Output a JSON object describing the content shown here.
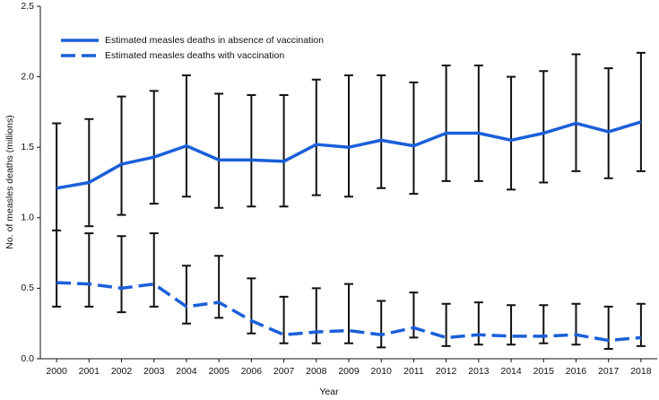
{
  "chart_data": {
    "type": "line",
    "x_label": "Year",
    "y_label": "No. of measles deaths (millions)",
    "x": [
      2000,
      2001,
      2002,
      2003,
      2004,
      2005,
      2006,
      2007,
      2008,
      2009,
      2010,
      2011,
      2012,
      2013,
      2014,
      2015,
      2016,
      2017,
      2018
    ],
    "xlim": [
      1999.5,
      2018.5
    ],
    "xticks": [
      2000,
      2001,
      2002,
      2003,
      2004,
      2005,
      2006,
      2007,
      2008,
      2009,
      2010,
      2011,
      2012,
      2013,
      2014,
      2015,
      2016,
      2017,
      2018
    ],
    "ylim": [
      0,
      2.5
    ],
    "yticks": [
      {
        "value": 0,
        "label": "0.0"
      },
      0.5,
      {
        "value": 1,
        "label": "1.0"
      },
      1.5,
      {
        "value": 2,
        "label": "2.0"
      },
      2.5
    ],
    "grid": false,
    "legend": "upper left",
    "series": [
      {
        "name": "Estimated measles deaths in absence of vaccination",
        "color": "#1a5fd9",
        "style": "solid",
        "values": [
          1.21,
          1.25,
          1.38,
          1.43,
          1.51,
          1.41,
          1.41,
          1.4,
          1.52,
          1.5,
          1.55,
          1.51,
          1.6,
          1.6,
          1.55,
          1.6,
          1.67,
          1.61,
          1.68
        ],
        "lower": [
          0.91,
          0.94,
          1.02,
          1.1,
          1.15,
          1.07,
          1.08,
          1.08,
          1.16,
          1.15,
          1.21,
          1.17,
          1.26,
          1.26,
          1.2,
          1.25,
          1.33,
          1.28,
          1.33
        ],
        "upper": [
          1.67,
          1.7,
          1.86,
          1.9,
          2.01,
          1.88,
          1.87,
          1.87,
          1.98,
          2.01,
          2.01,
          1.96,
          2.08,
          2.08,
          2.0,
          2.04,
          2.16,
          2.06,
          2.17
        ]
      },
      {
        "name": "Estimated measles deaths with vaccination",
        "color": "#1a5fd9",
        "style": "dashed",
        "values": [
          0.54,
          0.53,
          0.5,
          0.53,
          0.37,
          0.4,
          0.27,
          0.17,
          0.19,
          0.2,
          0.17,
          0.22,
          0.15,
          0.17,
          0.16,
          0.16,
          0.17,
          0.13,
          0.15
        ],
        "lower": [
          0.37,
          0.37,
          0.33,
          0.37,
          0.25,
          0.29,
          0.18,
          0.11,
          0.11,
          0.11,
          0.08,
          0.15,
          0.09,
          0.1,
          0.1,
          0.11,
          0.1,
          0.07,
          0.09
        ],
        "upper": [
          0.91,
          0.89,
          0.87,
          0.89,
          0.66,
          0.73,
          0.57,
          0.44,
          0.5,
          0.53,
          0.41,
          0.47,
          0.39,
          0.4,
          0.38,
          0.38,
          0.39,
          0.37,
          0.39
        ]
      }
    ]
  }
}
